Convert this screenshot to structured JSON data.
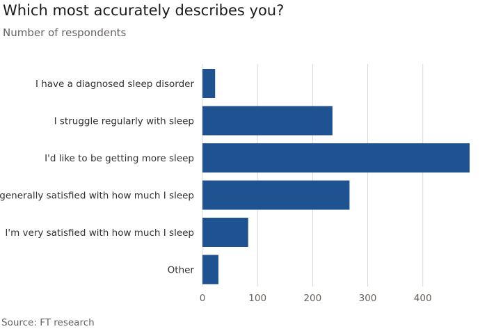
{
  "chart_data": {
    "type": "bar",
    "orientation": "horizontal",
    "title": "Which most accurately describes you?",
    "subtitle": "Number of respondents",
    "source": "Source: FT research",
    "categories": [
      "I have a diagnosed sleep disorder",
      "I struggle regularly with sleep",
      "I'd like to be getting more sleep",
      "I'm generally satisfied with how much I sleep",
      "I'm very satisfied with how much I sleep",
      "Other"
    ],
    "values": [
      23,
      236,
      485,
      267,
      83,
      29
    ],
    "xlim": [
      0,
      485
    ],
    "xticks": [
      0,
      100,
      200,
      300,
      400
    ],
    "grid": true,
    "color": "#1f5290",
    "gridColor": "#dcd7d2"
  }
}
